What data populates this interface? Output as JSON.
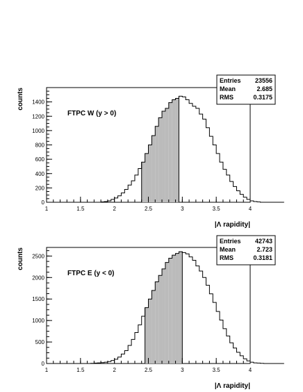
{
  "chart_data": [
    {
      "type": "histogram",
      "ylabel": "counts",
      "xlabel": "|Λ rapidity|",
      "annotation": "FTPC W (y > 0)",
      "xlim": [
        1,
        4
      ],
      "ylim": [
        0,
        1600
      ],
      "xticks": [
        1,
        1.5,
        2,
        2.5,
        3,
        3.5,
        4
      ],
      "yticks": [
        0,
        200,
        400,
        600,
        800,
        1000,
        1200,
        1400
      ],
      "bins_x0": 1.0,
      "bin_width": 0.05,
      "values": [
        0,
        0,
        0,
        0,
        0,
        0,
        0,
        0,
        0,
        0,
        0,
        0,
        0,
        0,
        0,
        0,
        5,
        10,
        20,
        40,
        60,
        90,
        130,
        180,
        240,
        300,
        380,
        470,
        560,
        680,
        800,
        930,
        1060,
        1180,
        1270,
        1310,
        1390,
        1430,
        1450,
        1480,
        1470,
        1430,
        1380,
        1340,
        1310,
        1230,
        1160,
        1040,
        920,
        800,
        680,
        560,
        460,
        380,
        290,
        220,
        160,
        110,
        70,
        40,
        20,
        10,
        5,
        0,
        0,
        0,
        0,
        0,
        0,
        0
      ],
      "shaded_range": [
        2.4,
        2.95
      ],
      "stats": {
        "rows": [
          {
            "label": "Entries",
            "value": "23556"
          },
          {
            "label": "Mean",
            "value": "2.685"
          },
          {
            "label": "RMS",
            "value": "0.3175"
          }
        ]
      }
    },
    {
      "type": "histogram",
      "ylabel": "counts",
      "xlabel": "|Λ rapidity|",
      "annotation": "FTPC E (y < 0)",
      "xlim": [
        1,
        4
      ],
      "ylim": [
        0,
        2700
      ],
      "xticks": [
        1,
        1.5,
        2,
        2.5,
        3,
        3.5,
        4
      ],
      "yticks": [
        0,
        500,
        1000,
        1500,
        2000,
        2500
      ],
      "bins_x0": 1.0,
      "bin_width": 0.05,
      "values": [
        0,
        0,
        0,
        0,
        0,
        0,
        0,
        0,
        0,
        0,
        0,
        0,
        0,
        5,
        10,
        15,
        20,
        30,
        45,
        70,
        100,
        150,
        220,
        300,
        420,
        560,
        720,
        900,
        1100,
        1300,
        1500,
        1700,
        1900,
        2050,
        2200,
        2350,
        2450,
        2520,
        2560,
        2600,
        2580,
        2550,
        2480,
        2400,
        2270,
        2150,
        2000,
        1820,
        1620,
        1420,
        1210,
        1010,
        810,
        640,
        480,
        360,
        260,
        180,
        110,
        60,
        30,
        15,
        10,
        5,
        0,
        0,
        0,
        0,
        0,
        0
      ],
      "shaded_range": [
        2.45,
        3.0
      ],
      "stats": {
        "rows": [
          {
            "label": "Entries",
            "value": "42743"
          },
          {
            "label": "Mean",
            "value": "2.723"
          },
          {
            "label": "RMS",
            "value": "0.3181"
          }
        ]
      }
    }
  ]
}
